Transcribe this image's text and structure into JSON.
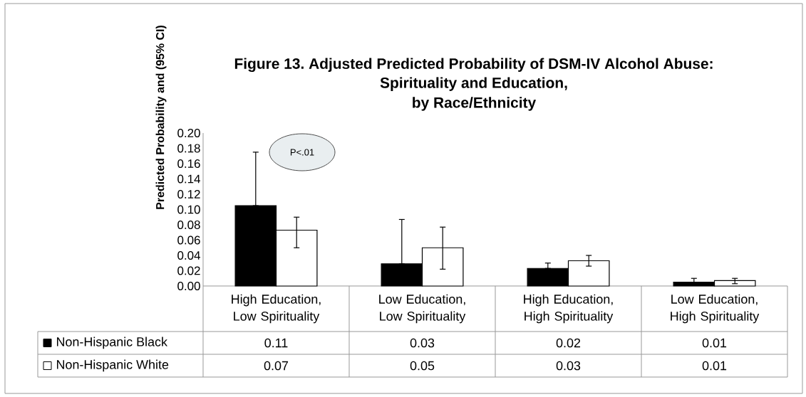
{
  "chart_data": {
    "type": "bar",
    "title": "Figure 13. Adjusted Predicted Probability of DSM-IV Alcohol Abuse: Spirituality and Education,",
    "subtitle": "by Race/Ethnicity",
    "ylabel": "Predicted Probability and (95% CI)",
    "categories": [
      "High Education, Low Spirituality",
      "Low Education, Low Spirituality",
      "High Education, High Spirituality",
      "Low Education, High Spirituality"
    ],
    "series": [
      {
        "name": "Non-Hispanic Black",
        "color": "#000000",
        "values": [
          0.105,
          0.029,
          0.023,
          0.005
        ],
        "errors": [
          [
            0.105,
            0.175
          ],
          [
            0.029,
            0.087
          ],
          [
            0.023,
            0.03
          ],
          [
            0.005,
            0.01
          ]
        ],
        "value_labels": [
          "0.11",
          "0.03",
          "0.02",
          "0.01"
        ]
      },
      {
        "name": "Non-Hispanic White",
        "color": "#ffffff",
        "values": [
          0.073,
          0.05,
          0.033,
          0.007
        ],
        "errors": [
          [
            0.05,
            0.09
          ],
          [
            0.022,
            0.077
          ],
          [
            0.026,
            0.04
          ],
          [
            0.003,
            0.01
          ]
        ],
        "value_labels": [
          "0.07",
          "0.05",
          "0.03",
          "0.01"
        ]
      }
    ],
    "ylim": [
      0,
      0.2
    ],
    "yticks": [
      {
        "value": 0,
        "label": "0.00"
      },
      {
        "value": 0.02,
        "label": "0.02"
      },
      {
        "value": 0.04,
        "label": "0.04"
      },
      {
        "value": 0.06,
        "label": "0.06"
      },
      {
        "value": 0.08,
        "label": "0.08"
      },
      {
        "value": 0.1,
        "label": "0.10"
      },
      {
        "value": 0.12,
        "label": "0.12"
      },
      {
        "value": 0.14,
        "label": "0.14"
      },
      {
        "value": 0.16,
        "label": "0.16"
      },
      {
        "value": 0.18,
        "label": "0.18"
      },
      {
        "value": 0.2,
        "label": "0.20"
      }
    ],
    "annotations": [
      "P<.01"
    ],
    "legend": "bottom left",
    "grid": false
  }
}
